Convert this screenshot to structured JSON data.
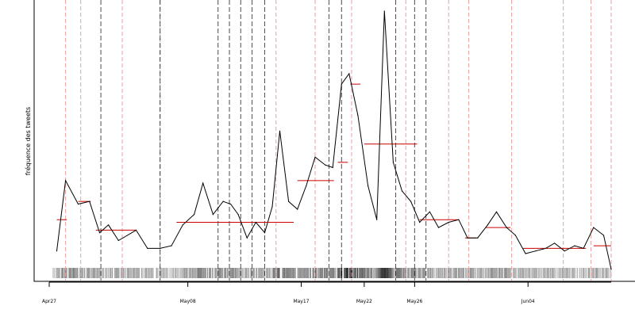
{
  "chart_data": {
    "type": "line",
    "ylabel": "fréquence des tweets",
    "xlabel": "",
    "x_ticks": [
      {
        "label": "Apr27",
        "day": 0
      },
      {
        "label": "May08",
        "day": 11
      },
      {
        "label": "May17",
        "day": 20
      },
      {
        "label": "May22",
        "day": 25
      },
      {
        "label": "May26",
        "day": 29
      },
      {
        "label": "Jun04",
        "day": 38
      }
    ],
    "ylim": [
      0,
      100
    ],
    "grid": false,
    "series": [
      {
        "values": [
          [
            0.6,
            8
          ],
          [
            1.3,
            35
          ],
          [
            2.3,
            26
          ],
          [
            3.2,
            27
          ],
          [
            4.0,
            15
          ],
          [
            4.7,
            18
          ],
          [
            5.5,
            12
          ],
          [
            6.9,
            16
          ],
          [
            7.8,
            9
          ],
          [
            8.8,
            9
          ],
          [
            9.7,
            10
          ],
          [
            10.6,
            18
          ],
          [
            11.5,
            22
          ],
          [
            12.2,
            34
          ],
          [
            13.0,
            22
          ],
          [
            13.8,
            27
          ],
          [
            14.4,
            26
          ],
          [
            15.0,
            22
          ],
          [
            15.7,
            13
          ],
          [
            16.4,
            19
          ],
          [
            17.1,
            15
          ],
          [
            17.7,
            25
          ],
          [
            18.3,
            54
          ],
          [
            19.0,
            27
          ],
          [
            19.7,
            24
          ],
          [
            20.4,
            33
          ],
          [
            21.1,
            44
          ],
          [
            21.9,
            41
          ],
          [
            22.5,
            40
          ],
          [
            23.2,
            72
          ],
          [
            23.8,
            76
          ],
          [
            24.5,
            60
          ],
          [
            25.3,
            33
          ],
          [
            26.0,
            20
          ],
          [
            26.6,
            100
          ],
          [
            27.3,
            42
          ],
          [
            28.0,
            31
          ],
          [
            28.7,
            27
          ],
          [
            29.4,
            19
          ],
          [
            30.2,
            23
          ],
          [
            30.9,
            17
          ],
          [
            31.7,
            19
          ],
          [
            32.5,
            20
          ],
          [
            33.2,
            13
          ],
          [
            34.0,
            13
          ],
          [
            34.8,
            18
          ],
          [
            35.5,
            23
          ],
          [
            36.3,
            17
          ],
          [
            37.0,
            14
          ],
          [
            37.8,
            7
          ],
          [
            38.6,
            8
          ],
          [
            39.4,
            9
          ],
          [
            40.1,
            11
          ],
          [
            40.9,
            8
          ],
          [
            41.7,
            10
          ],
          [
            42.4,
            9
          ],
          [
            43.2,
            17
          ],
          [
            44.0,
            14
          ],
          [
            44.6,
            1
          ]
        ]
      }
    ],
    "segment_levels": [
      {
        "from": 0.6,
        "to": 1.4,
        "level": 20
      },
      {
        "from": 2.3,
        "to": 3.3,
        "level": 27
      },
      {
        "from": 3.7,
        "to": 6.9,
        "level": 16
      },
      {
        "from": 10.1,
        "to": 19.4,
        "level": 19
      },
      {
        "from": 19.7,
        "to": 22.6,
        "level": 35
      },
      {
        "from": 22.9,
        "to": 23.7,
        "level": 42
      },
      {
        "from": 23.9,
        "to": 24.7,
        "level": 72
      },
      {
        "from": 25.0,
        "to": 29.2,
        "level": 49
      },
      {
        "from": 29.4,
        "to": 32.5,
        "level": 20
      },
      {
        "from": 33.0,
        "to": 33.9,
        "level": 13
      },
      {
        "from": 34.6,
        "to": 36.6,
        "level": 17
      },
      {
        "from": 37.6,
        "to": 42.6,
        "level": 9
      },
      {
        "from": 43.2,
        "to": 44.6,
        "level": 10
      }
    ],
    "change_points_red": [
      1.3,
      2.5,
      5.8,
      8.8,
      18.0,
      21.1,
      24.0,
      28.3,
      31.7,
      33.3,
      36.7,
      40.8,
      43.0,
      44.6
    ],
    "change_points_black": [
      4.1,
      8.8,
      13.4,
      14.3,
      15.2,
      16.1,
      17.1,
      22.2,
      23.2,
      27.5,
      29.0,
      29.9
    ],
    "colors": {
      "line": "#000000",
      "segment": "#cc0000",
      "red_vline": "#e8a0a0",
      "black_vline": "#000000",
      "axis": "#000000"
    }
  }
}
